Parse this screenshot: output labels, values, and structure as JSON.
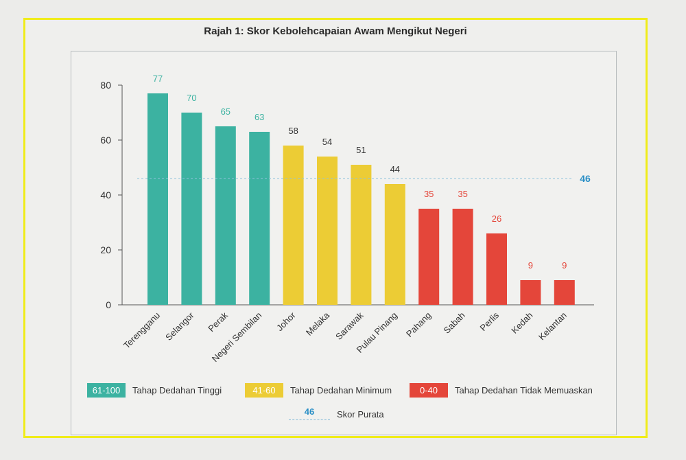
{
  "chart_data": {
    "type": "bar",
    "title": "Rajah 1: Skor Kebolehcapaian Awam Mengikut Negeri",
    "categories": [
      "Terengganu",
      "Selangor",
      "Perak",
      "Negeri Sembilan",
      "Johor",
      "Melaka",
      "Sarawak",
      "Pulau Pinang",
      "Pahang",
      "Sabah",
      "Perlis",
      "Kedah",
      "Kelantan"
    ],
    "values": [
      77,
      70,
      65,
      63,
      58,
      54,
      51,
      44,
      35,
      35,
      26,
      9,
      9
    ],
    "value_labels": [
      "77",
      "70",
      "65",
      "63",
      "58",
      "54",
      "51",
      "44",
      "35",
      "35",
      "26",
      "9",
      "9"
    ],
    "ylim": [
      0,
      80
    ],
    "yticks": [
      0,
      20,
      40,
      60,
      80
    ],
    "ytick_labels": [
      "0",
      "20",
      "40",
      "60",
      "80"
    ],
    "average": {
      "value": 46,
      "label": "46"
    },
    "grid": false,
    "legend_position": "bottom",
    "bands": [
      {
        "range": "61-100",
        "label": "Tahap Dedahan Tinggi",
        "min": 61,
        "max": 100,
        "color": "#3cb2a1"
      },
      {
        "range": "41-60",
        "label": "Tahap Dedahan Minimum",
        "min": 41,
        "max": 60,
        "color": "#eccc35"
      },
      {
        "range": "0-40",
        "label": "Tahap Dedahan Tidak Memuaskan",
        "min": 0,
        "max": 40,
        "color": "#e4463a"
      }
    ],
    "value_label_colors": {
      "high": "#3cb2a1",
      "mid": "#333333",
      "low": "#e4463a"
    },
    "average_color": "#2a8fc6"
  },
  "legend": {
    "high": {
      "range": "61-100",
      "label": "Tahap Dedahan Tinggi"
    },
    "mid": {
      "range": "41-60",
      "label": "Tahap Dedahan Minimum"
    },
    "low": {
      "range": "0-40",
      "label": "Tahap Dedahan Tidak Memuaskan"
    },
    "average": {
      "value": "46",
      "label": "Skor Purata"
    }
  }
}
